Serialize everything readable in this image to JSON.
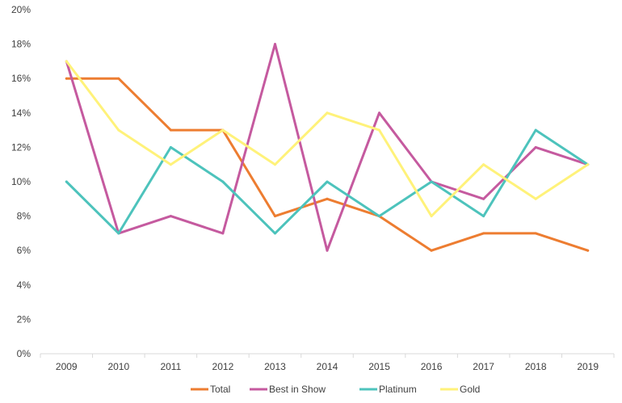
{
  "chart_data": {
    "type": "line",
    "x": [
      "2009",
      "2010",
      "2011",
      "2012",
      "2013",
      "2014",
      "2015",
      "2016",
      "2017",
      "2018",
      "2019"
    ],
    "y_ticks": [
      "0%",
      "2%",
      "4%",
      "6%",
      "8%",
      "10%",
      "12%",
      "14%",
      "16%",
      "18%",
      "20%"
    ],
    "ylim": [
      0,
      20
    ],
    "y_unit": "%",
    "grid": false,
    "legend_position": "bottom",
    "series": [
      {
        "name": "Total",
        "color": "#ED7D31",
        "values": [
          16,
          16,
          13,
          13,
          8,
          9,
          8,
          6,
          7,
          7,
          6
        ]
      },
      {
        "name": "Best in Show",
        "color": "#C55A9F",
        "values": [
          17,
          7,
          8,
          7,
          18,
          6,
          14,
          10,
          9,
          12,
          11
        ]
      },
      {
        "name": "Platinum",
        "color": "#4DC3BC",
        "values": [
          10,
          7,
          12,
          10,
          7,
          10,
          8,
          10,
          8,
          13,
          11
        ]
      },
      {
        "name": "Gold",
        "color": "#FFF27A",
        "values": [
          17,
          13,
          11,
          13,
          11,
          14,
          13,
          8,
          11,
          9,
          11
        ]
      }
    ]
  }
}
